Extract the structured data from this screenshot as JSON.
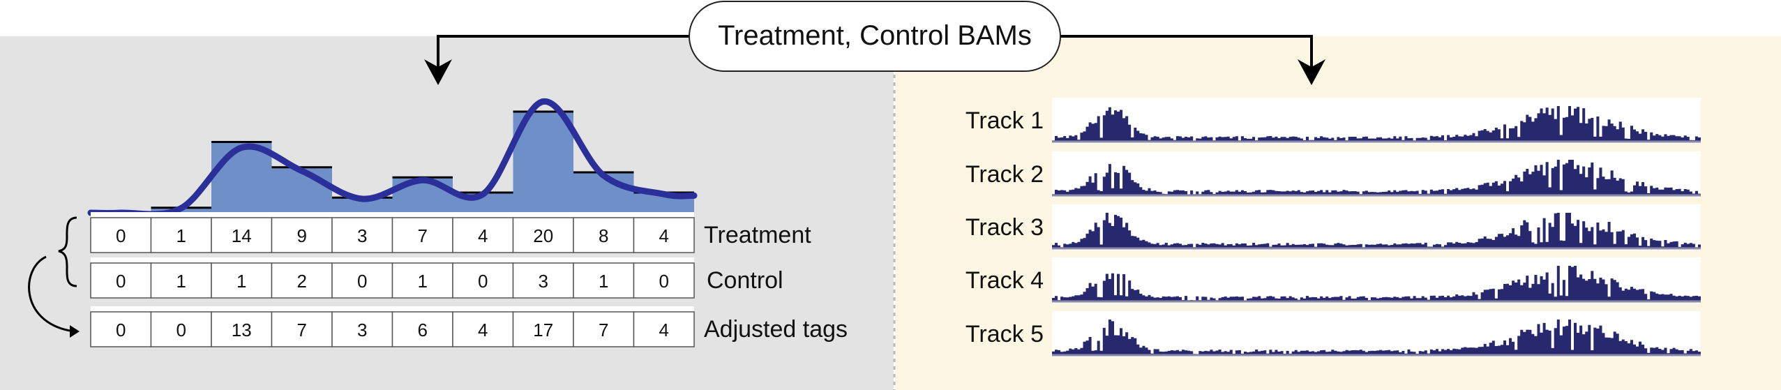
{
  "header": {
    "title": "Treatment, Control BAMs"
  },
  "left_panel": {
    "rows": [
      {
        "label": "Treatment",
        "values": [
          0,
          1,
          14,
          9,
          3,
          7,
          4,
          20,
          8,
          4
        ]
      },
      {
        "label": "Control",
        "values": [
          0,
          1,
          1,
          2,
          0,
          1,
          0,
          3,
          1,
          0
        ]
      },
      {
        "label": "Adjusted tags",
        "values": [
          0,
          0,
          13,
          7,
          3,
          6,
          4,
          17,
          7,
          4
        ]
      }
    ]
  },
  "right_panel": {
    "tracks": [
      {
        "label": "Track 1"
      },
      {
        "label": "Track 2"
      },
      {
        "label": "Track 3"
      },
      {
        "label": "Track 4"
      },
      {
        "label": "Track 5"
      }
    ]
  },
  "colors": {
    "left_bg": "#e3e3e3",
    "right_bg": "#fdf6e2",
    "bar_fill": "#6f8fc9",
    "curve": "#2b2f9a",
    "track_fill": "#28286e",
    "divider": "#b9b9b9"
  }
}
